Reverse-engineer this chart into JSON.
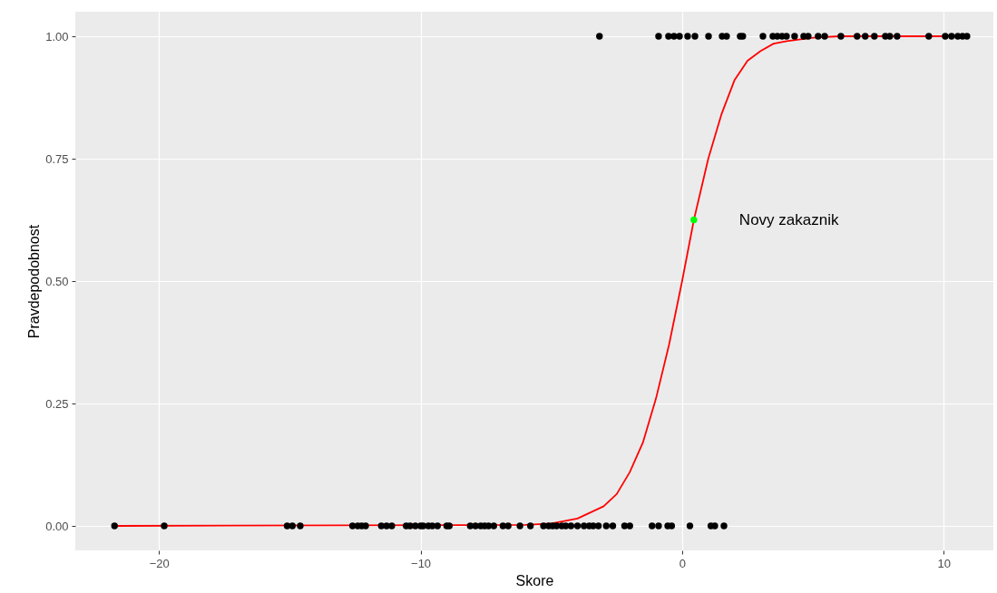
{
  "chart_data": {
    "type": "scatter",
    "xlabel": "Skore",
    "ylabel": "Pravdepodobnost",
    "xlim": [
      -23.2,
      11.9
    ],
    "ylim": [
      -0.05,
      1.05
    ],
    "xticks": [
      {
        "value": -20,
        "label": "−20"
      },
      {
        "value": -10,
        "label": "−10"
      },
      0,
      10
    ],
    "yticks": [
      {
        "value": 0,
        "label": "0.00"
      },
      {
        "value": 0.25,
        "label": "0.25"
      },
      {
        "value": 0.5,
        "label": "0.50"
      },
      {
        "value": 0.75,
        "label": "0.75"
      },
      {
        "value": 1,
        "label": "1.00"
      }
    ],
    "grid": true,
    "series": [
      {
        "type": "line",
        "marker": "none",
        "color": "#ff0000",
        "x": [
          -21.7,
          -6,
          -5,
          -4,
          -3,
          -2.5,
          -2,
          -1.5,
          -1,
          -0.5,
          0,
          0.45,
          1,
          1.5,
          2,
          2.5,
          3,
          3.5,
          4,
          5,
          6,
          8,
          10.9
        ],
        "values": [
          0,
          0.002,
          0.005,
          0.015,
          0.04,
          0.065,
          0.11,
          0.17,
          0.26,
          0.37,
          0.5,
          0.625,
          0.75,
          0.84,
          0.91,
          0.95,
          0.97,
          0.985,
          0.99,
          0.997,
          1,
          1,
          1
        ]
      },
      {
        "marker": "circle",
        "color": "#000000",
        "x": [
          -21.7,
          -19.8,
          -15.1,
          -14.9,
          -14.6,
          -12.6,
          -12.4,
          -12.25,
          -12.1,
          -11.5,
          -11.3,
          -11.1,
          -10.55,
          -10.4,
          -10.2,
          -10,
          -9.9,
          -9.7,
          -9.55,
          -9.35,
          -9,
          -8.9,
          -8.1,
          -7.9,
          -7.7,
          -7.55,
          -7.4,
          -7.2,
          -6.85,
          -6.65,
          -6.2,
          -5.8,
          -5.3,
          -5.1,
          -4.95,
          -4.8,
          -4.6,
          -4.45,
          -4.25,
          -4,
          -3.75,
          -3.55,
          -3.4,
          -3.2,
          -2.9,
          -2.65,
          -2.2,
          -2,
          -1.15,
          -0.9,
          -0.55,
          -0.4,
          0.3,
          1.1,
          1.25,
          1.6
        ],
        "values": [
          0,
          0,
          0,
          0,
          0,
          0,
          0,
          0,
          0,
          0,
          0,
          0,
          0,
          0,
          0,
          0,
          0,
          0,
          0,
          0,
          0,
          0,
          0,
          0,
          0,
          0,
          0,
          0,
          0,
          0,
          0,
          0,
          0,
          0,
          0,
          0,
          0,
          0,
          0,
          0,
          0,
          0,
          0,
          0,
          0,
          0,
          0,
          0,
          0,
          0,
          0,
          0,
          0,
          0,
          0,
          0
        ]
      },
      {
        "marker": "circle",
        "color": "#000000",
        "x": [
          -3.16,
          -0.9,
          -0.52,
          -0.31,
          -0.1,
          0.21,
          0.49,
          1.01,
          1.53,
          1.7,
          2.22,
          2.32,
          3.09,
          3.47,
          3.64,
          3.82,
          3.99,
          4.3,
          4.65,
          4.82,
          5.2,
          5.45,
          6.07,
          6.69,
          7,
          7.35,
          7.77,
          7.94,
          8.22,
          9.43,
          10.06,
          10.3,
          10.54,
          10.72,
          10.89
        ],
        "values": [
          1,
          1,
          1,
          1,
          1,
          1,
          1,
          1,
          1,
          1,
          1,
          1,
          1,
          1,
          1,
          1,
          1,
          1,
          1,
          1,
          1,
          1,
          1,
          1,
          1,
          1,
          1,
          1,
          1,
          1,
          1,
          1,
          1,
          1,
          1
        ]
      },
      {
        "marker": "circle",
        "color": "#00ff00",
        "x": [
          0.45
        ],
        "values": [
          0.625
        ]
      }
    ],
    "annotations": [
      {
        "text": "Novy zakaznik",
        "x": 0.45,
        "y": 0.625
      }
    ]
  }
}
